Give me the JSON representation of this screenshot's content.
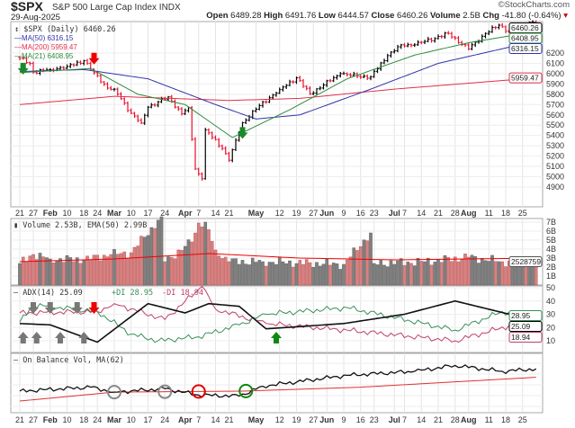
{
  "header": {
    "symbol": "$SPX",
    "name": "S&P 500 Large Cap Index",
    "exchange": "INDX",
    "date": "29-Aug-2025",
    "brand": "©StockCharts.com",
    "quote": {
      "open_label": "Open",
      "open": "6489.28",
      "high_label": "High",
      "high": "6491.76",
      "low_label": "Low",
      "low": "6444.57",
      "close_label": "Close",
      "close": "6460.26",
      "volume_label": "Volume",
      "volume": "2.5B",
      "chg_label": "Chg",
      "chg": "-41.80 (-0.64%)"
    }
  },
  "colors": {
    "up": "#000000",
    "down": "#e8112d",
    "ma50": "#3333aa",
    "ma200": "#e0304a",
    "ma21": "#2e8b3e",
    "vol_up": "#808080",
    "vol_down": "#d98080",
    "plus_di": "#3a8f5a",
    "minus_di": "#c0406a"
  },
  "chart_data": [
    {
      "type": "ohlc",
      "title": "$SPX (Daily) 6460.26",
      "ylim": [
        4800,
        6550
      ],
      "yticks": [
        6200,
        6100,
        6000,
        5900,
        5800,
        5700,
        5600,
        5500,
        5400,
        5300,
        5200,
        5100,
        5000,
        4900
      ],
      "legend": [
        "MA(50) 6316.15",
        "MA(200) 5959.47",
        "MA(21) 6408.95"
      ],
      "tags": {
        "close": "6460.26",
        "ma21": "6408.95",
        "ma50": "6316.15",
        "ma200": "5959.47"
      },
      "close_anchors": [
        [
          "2025-01-21",
          6150
        ],
        [
          "2025-01-24",
          6100
        ],
        [
          "2025-01-27",
          6015
        ],
        [
          "2025-02-03",
          6040
        ],
        [
          "2025-02-10",
          6070
        ],
        [
          "2025-02-18",
          6125
        ],
        [
          "2025-02-21",
          6010
        ],
        [
          "2025-02-27",
          5860
        ],
        [
          "2025-03-03",
          5850
        ],
        [
          "2025-03-10",
          5615
        ],
        [
          "2025-03-13",
          5520
        ],
        [
          "2025-03-17",
          5675
        ],
        [
          "2025-03-25",
          5775
        ],
        [
          "2025-03-31",
          5610
        ],
        [
          "2025-04-02",
          5670
        ],
        [
          "2025-04-04",
          5075
        ],
        [
          "2025-04-08",
          4980
        ],
        [
          "2025-04-09",
          5455
        ],
        [
          "2025-04-16",
          5275
        ],
        [
          "2025-04-21",
          5160
        ],
        [
          "2025-04-25",
          5525
        ],
        [
          "2025-05-02",
          5690
        ],
        [
          "2025-05-12",
          5845
        ],
        [
          "2025-05-19",
          5960
        ],
        [
          "2025-05-23",
          5805
        ],
        [
          "2025-06-06",
          6000
        ],
        [
          "2025-06-13",
          5975
        ],
        [
          "2025-06-20",
          5970
        ],
        [
          "2025-06-27",
          6175
        ],
        [
          "2025-07-03",
          6280
        ],
        [
          "2025-07-10",
          6280
        ],
        [
          "2025-07-24",
          6390
        ],
        [
          "2025-08-01",
          6240
        ],
        [
          "2025-08-08",
          6390
        ],
        [
          "2025-08-14",
          6470
        ],
        [
          "2025-08-19",
          6410
        ],
        [
          "2025-08-22",
          6470
        ],
        [
          "2025-08-28",
          6500
        ],
        [
          "2025-08-29",
          6460.26
        ]
      ],
      "ma50": [
        [
          "2025-01-21",
          6020
        ],
        [
          "2025-02-18",
          6040
        ],
        [
          "2025-03-17",
          5950
        ],
        [
          "2025-04-14",
          5700
        ],
        [
          "2025-05-01",
          5560
        ],
        [
          "2025-05-20",
          5600
        ],
        [
          "2025-06-20",
          5850
        ],
        [
          "2025-07-21",
          6100
        ],
        [
          "2025-08-29",
          6316.15
        ]
      ],
      "ma200": [
        [
          "2025-01-21",
          5700
        ],
        [
          "2025-03-03",
          5780
        ],
        [
          "2025-04-21",
          5740
        ],
        [
          "2025-05-20",
          5760
        ],
        [
          "2025-07-01",
          5850
        ],
        [
          "2025-08-29",
          5959.47
        ]
      ],
      "ma21": [
        [
          "2025-01-21",
          6010
        ],
        [
          "2025-02-20",
          6050
        ],
        [
          "2025-03-12",
          5800
        ],
        [
          "2025-04-01",
          5700
        ],
        [
          "2025-04-22",
          5380
        ],
        [
          "2025-05-15",
          5650
        ],
        [
          "2025-06-10",
          5950
        ],
        [
          "2025-07-10",
          6180
        ],
        [
          "2025-08-01",
          6300
        ],
        [
          "2025-08-29",
          6408.95
        ]
      ],
      "signals": [
        [
          "2025-01-22",
          "down-arrow-green"
        ],
        [
          "2025-02-21",
          "down-arrow-red"
        ],
        [
          "2025-04-25",
          "down-arrow-green"
        ]
      ]
    },
    {
      "type": "bar",
      "title": "Volume 2.53B, EMA(50) 2.99B",
      "yticks": [
        "7B",
        "6B",
        "5B",
        "4B",
        "3B",
        "2B",
        "1B"
      ],
      "tag": "2528759",
      "volume_anchors": [
        [
          "2025-01-21",
          2.4
        ],
        [
          "2025-01-27",
          3.4
        ],
        [
          "2025-02-03",
          2.9
        ],
        [
          "2025-02-18",
          2.8
        ],
        [
          "2025-02-28",
          3.4
        ],
        [
          "2025-03-10",
          3.6
        ],
        [
          "2025-03-21",
          7.6
        ],
        [
          "2025-03-24",
          2.6
        ],
        [
          "2025-04-03",
          4.8
        ],
        [
          "2025-04-07",
          6.9
        ],
        [
          "2025-04-09",
          7.0
        ],
        [
          "2025-04-14",
          3.9
        ],
        [
          "2025-04-21",
          2.6
        ],
        [
          "2025-05-05",
          2.6
        ],
        [
          "2025-06-09",
          2.3
        ],
        [
          "2025-06-20",
          5.8
        ],
        [
          "2025-06-23",
          2.4
        ],
        [
          "2025-07-15",
          2.6
        ],
        [
          "2025-08-01",
          3.1
        ],
        [
          "2025-08-15",
          2.6
        ],
        [
          "2025-08-29",
          2.53
        ]
      ],
      "ema50": [
        [
          "2025-01-21",
          2.6
        ],
        [
          "2025-03-01",
          2.9
        ],
        [
          "2025-04-10",
          3.5
        ],
        [
          "2025-05-20",
          3.0
        ],
        [
          "2025-07-01",
          2.8
        ],
        [
          "2025-08-29",
          2.99
        ]
      ]
    },
    {
      "type": "line",
      "title": "ADX(14) 25.09",
      "plus_label": "+DI 28.95",
      "minus_label": "-DI 18.94",
      "yticks": [
        50,
        40,
        30,
        20,
        10
      ],
      "tags": {
        "plus_di": "28.95",
        "adx": "25.09",
        "minus_di": "18.94"
      },
      "adx": [
        [
          "2025-01-21",
          23
        ],
        [
          "2025-02-03",
          22
        ],
        [
          "2025-02-24",
          9
        ],
        [
          "2025-03-17",
          38
        ],
        [
          "2025-04-01",
          31
        ],
        [
          "2025-04-10",
          38
        ],
        [
          "2025-04-24",
          36
        ],
        [
          "2025-05-06",
          19
        ],
        [
          "2025-06-09",
          23
        ],
        [
          "2025-07-07",
          30
        ],
        [
          "2025-07-28",
          40
        ],
        [
          "2025-08-29",
          25.09
        ]
      ],
      "plus_di": [
        [
          "2025-01-21",
          24
        ],
        [
          "2025-01-27",
          37
        ],
        [
          "2025-02-24",
          32
        ],
        [
          "2025-03-10",
          15
        ],
        [
          "2025-03-20",
          10
        ],
        [
          "2025-04-07",
          13
        ],
        [
          "2025-04-24",
          22
        ],
        [
          "2025-05-06",
          30
        ],
        [
          "2025-06-10",
          35
        ],
        [
          "2025-07-28",
          18
        ],
        [
          "2025-08-15",
          32
        ],
        [
          "2025-08-29",
          28.95
        ]
      ],
      "minus_di": [
        [
          "2025-01-21",
          31
        ],
        [
          "2025-02-24",
          32
        ],
        [
          "2025-03-03",
          38
        ],
        [
          "2025-03-24",
          26
        ],
        [
          "2025-04-08",
          51
        ],
        [
          "2025-04-14",
          34
        ],
        [
          "2025-05-06",
          23
        ],
        [
          "2025-06-10",
          18
        ],
        [
          "2025-07-28",
          10
        ],
        [
          "2025-08-20",
          22
        ],
        [
          "2025-08-29",
          18.94
        ]
      ]
    },
    {
      "type": "line",
      "title": "On Balance Vol, MA(62)",
      "obv": [
        [
          "2025-01-21",
          20
        ],
        [
          "2025-02-20",
          28
        ],
        [
          "2025-03-03",
          18
        ],
        [
          "2025-03-24",
          25
        ],
        [
          "2025-04-07",
          12
        ],
        [
          "2025-04-24",
          10
        ],
        [
          "2025-05-05",
          30
        ],
        [
          "2025-06-10",
          52
        ],
        [
          "2025-07-10",
          60
        ],
        [
          "2025-07-28",
          72
        ],
        [
          "2025-08-15",
          60
        ],
        [
          "2025-08-29",
          65
        ]
      ],
      "ma62": [
        [
          "2025-01-21",
          0
        ],
        [
          "2025-03-01",
          18
        ],
        [
          "2025-04-25",
          20
        ],
        [
          "2025-06-15",
          28
        ],
        [
          "2025-08-29",
          48
        ]
      ],
      "circles": [
        [
          "2025-03-03",
          "#888888"
        ],
        [
          "2025-03-24",
          "#888888"
        ],
        [
          "2025-04-07",
          "#e00000"
        ],
        [
          "2025-04-28",
          "#118811"
        ]
      ]
    }
  ],
  "x_ticks": [
    [
      "2025-01-21",
      "21"
    ],
    [
      "2025-01-27",
      "27"
    ],
    [
      "2025-02-03",
      "Feb"
    ],
    [
      "2025-02-10",
      "10"
    ],
    [
      "2025-02-18",
      "18"
    ],
    [
      "2025-02-24",
      "24"
    ],
    [
      "2025-03-03",
      "Mar"
    ],
    [
      "2025-03-10",
      "10"
    ],
    [
      "2025-03-17",
      "17"
    ],
    [
      "2025-03-24",
      "24"
    ],
    [
      "2025-04-01",
      "Apr"
    ],
    [
      "2025-04-07",
      "7"
    ],
    [
      "2025-04-14",
      "14"
    ],
    [
      "2025-04-21",
      "21"
    ],
    [
      "2025-05-01",
      "May"
    ],
    [
      "2025-05-12",
      "12"
    ],
    [
      "2025-05-19",
      "19"
    ],
    [
      "2025-05-27",
      "27"
    ],
    [
      "2025-06-02",
      "Jun"
    ],
    [
      "2025-06-09",
      "9"
    ],
    [
      "2025-06-16",
      "16"
    ],
    [
      "2025-06-23",
      "23"
    ],
    [
      "2025-07-01",
      "Jul"
    ],
    [
      "2025-07-07",
      "7"
    ],
    [
      "2025-07-14",
      "14"
    ],
    [
      "2025-07-21",
      "21"
    ],
    [
      "2025-07-28",
      "28"
    ],
    [
      "2025-08-01",
      "Aug"
    ],
    [
      "2025-08-11",
      "11"
    ],
    [
      "2025-08-18",
      "18"
    ],
    [
      "2025-08-25",
      "25"
    ]
  ]
}
